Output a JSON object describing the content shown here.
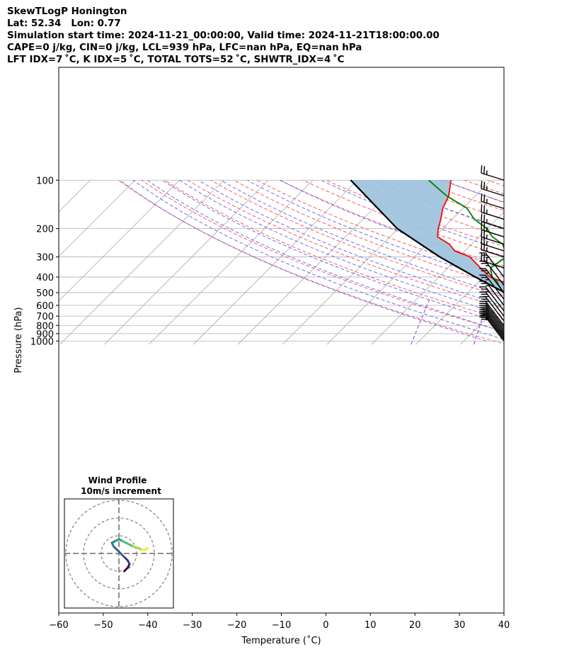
{
  "header": {
    "line1": "SkewTLogP Honington",
    "line2": "Lat: 52.34   Lon: 0.77",
    "line3": "Simulation start time: 2024-11-21_00:00:00, Valid time: 2024-11-21T18:00:00.00",
    "line4": "CAPE=0 j/kg, CIN=0 j/kg, LCL=939 hPa, LFC=nan hPa, EQ=nan hPa",
    "line5": "LFT IDX=7 ˚C, K IDX=5 ˚C, TOTAL TOTS=52 ˚C, SHWTR_IDX=4 ˚C"
  },
  "chart_data": {
    "type": "line",
    "subtype": "skew-t log-p",
    "xlabel": "Temperature (˚C)",
    "ylabel": "Pressure (hPa)",
    "xlim": [
      -60,
      40
    ],
    "ylim_hPa": [
      1050,
      100
    ],
    "x_ticks": [
      "−60",
      "−50",
      "−40",
      "−30",
      "−20",
      "−10",
      "0",
      "10",
      "20",
      "30",
      "40"
    ],
    "x_tick_values": [
      -60,
      -50,
      -40,
      -30,
      -20,
      -10,
      0,
      10,
      20,
      30,
      40
    ],
    "y_ticks": [
      "1000",
      "900",
      "800",
      "700",
      "600",
      "500",
      "400",
      "300",
      "200",
      "100"
    ],
    "y_tick_values": [
      1000,
      900,
      800,
      700,
      600,
      500,
      400,
      300,
      200,
      100
    ],
    "grid": true,
    "colors": {
      "temperature": "#ff0000",
      "dewpoint": "#008000",
      "parcel": "#000000",
      "cape_fill": "#a0c4de",
      "dry_adiabat": "#ff4040",
      "moist_adiabat": "#4b5cf0",
      "mixing_ratio": "#9a32cd",
      "isotherm": "#aaaaaa"
    },
    "series": [
      {
        "name": "Temperature",
        "points": [
          [
            3.6,
            1000
          ],
          [
            3.5,
            975
          ],
          [
            2.5,
            950
          ],
          [
            1.0,
            925
          ],
          [
            -0.5,
            900
          ],
          [
            -2.0,
            875
          ],
          [
            -3.3,
            850
          ],
          [
            -5.0,
            825
          ],
          [
            -6.7,
            800
          ],
          [
            -9.2,
            750
          ],
          [
            -11.8,
            700
          ],
          [
            -15.0,
            650
          ],
          [
            -18.0,
            600
          ],
          [
            -22.0,
            550
          ],
          [
            -26.5,
            500
          ],
          [
            -31.2,
            450
          ],
          [
            -35.0,
            425
          ],
          [
            -38.5,
            400
          ],
          [
            -42.8,
            350
          ],
          [
            -47.5,
            300
          ],
          [
            -52.3,
            275
          ],
          [
            -55.0,
            250
          ],
          [
            -59.3,
            225
          ],
          [
            -61.0,
            200
          ],
          [
            -62.5,
            175
          ],
          [
            -64.5,
            150
          ],
          [
            -66.0,
            125
          ],
          [
            -69.0,
            100
          ]
        ]
      },
      {
        "name": "Dewpoint",
        "points": [
          [
            -2.6,
            985
          ],
          [
            -3.0,
            970
          ],
          [
            -8.0,
            945
          ],
          [
            -10.6,
            915
          ],
          [
            -10.0,
            880
          ],
          [
            -11.0,
            840
          ],
          [
            -9.5,
            800
          ],
          [
            -12.0,
            760
          ],
          [
            -17.5,
            700
          ],
          [
            -24.0,
            650
          ],
          [
            -27.5,
            600
          ],
          [
            -29.3,
            550
          ],
          [
            -32.0,
            500
          ],
          [
            -34.7,
            450
          ],
          [
            -36.0,
            425
          ],
          [
            -38.0,
            400
          ],
          [
            -40.5,
            350
          ],
          [
            -39.3,
            300
          ],
          [
            -41.0,
            275
          ],
          [
            -43.0,
            250
          ],
          [
            -47.0,
            225
          ],
          [
            -50.0,
            200
          ],
          [
            -55.0,
            175
          ],
          [
            -59.0,
            150
          ],
          [
            -66.5,
            125
          ],
          [
            -74.0,
            100
          ]
        ]
      },
      {
        "name": "Parcel",
        "points": [
          [
            -2.6,
            985
          ],
          [
            -3.3,
            940
          ],
          [
            -5.2,
            900
          ],
          [
            -7.6,
            850
          ],
          [
            -10.3,
            800
          ],
          [
            -16.3,
            700
          ],
          [
            -23.4,
            600
          ],
          [
            -31.7,
            500
          ],
          [
            -41.8,
            400
          ],
          [
            -54.3,
            300
          ],
          [
            -70.2,
            200
          ],
          [
            -91.5,
            100
          ]
        ]
      }
    ],
    "wind_barbs": [
      {
        "p": 1000,
        "speed_kt": 20
      },
      {
        "p": 975,
        "speed_kt": 25
      },
      {
        "p": 950,
        "speed_kt": 25
      },
      {
        "p": 925,
        "speed_kt": 25
      },
      {
        "p": 900,
        "speed_kt": 30
      },
      {
        "p": 875,
        "speed_kt": 30
      },
      {
        "p": 850,
        "speed_kt": 30
      },
      {
        "p": 825,
        "speed_kt": 30
      },
      {
        "p": 800,
        "speed_kt": 30
      },
      {
        "p": 750,
        "speed_kt": 30
      },
      {
        "p": 700,
        "speed_kt": 30
      },
      {
        "p": 650,
        "speed_kt": 25
      },
      {
        "p": 600,
        "speed_kt": 25
      },
      {
        "p": 550,
        "speed_kt": 25
      },
      {
        "p": 500,
        "speed_kt": 25
      },
      {
        "p": 450,
        "speed_kt": 25
      },
      {
        "p": 400,
        "speed_kt": 25
      },
      {
        "p": 350,
        "speed_kt": 25
      },
      {
        "p": 300,
        "speed_kt": 25
      },
      {
        "p": 275,
        "speed_kt": 25
      },
      {
        "p": 250,
        "speed_kt": 25
      },
      {
        "p": 225,
        "speed_kt": 25
      },
      {
        "p": 200,
        "speed_kt": 25
      },
      {
        "p": 175,
        "speed_kt": 25
      },
      {
        "p": 150,
        "speed_kt": 25
      },
      {
        "p": 125,
        "speed_kt": 25
      },
      {
        "p": 100,
        "speed_kt": 25
      }
    ],
    "inset": {
      "title": "Wind Profile",
      "subtitle": "10m/s increment",
      "rings_ms": [
        10,
        20,
        30
      ],
      "hodograph": [
        [
          3,
          10
        ],
        [
          5,
          8
        ],
        [
          6,
          6
        ],
        [
          5,
          4
        ],
        [
          3,
          2
        ],
        [
          1,
          0
        ],
        [
          -1,
          -2
        ],
        [
          -3,
          -4
        ],
        [
          -4,
          -6
        ],
        [
          -2,
          -7
        ],
        [
          0,
          -8
        ],
        [
          2,
          -7
        ],
        [
          4,
          -6
        ],
        [
          6,
          -5
        ],
        [
          8,
          -4
        ],
        [
          11,
          -3
        ],
        [
          13,
          -2
        ],
        [
          15,
          -2
        ],
        [
          16,
          -3
        ]
      ]
    }
  }
}
